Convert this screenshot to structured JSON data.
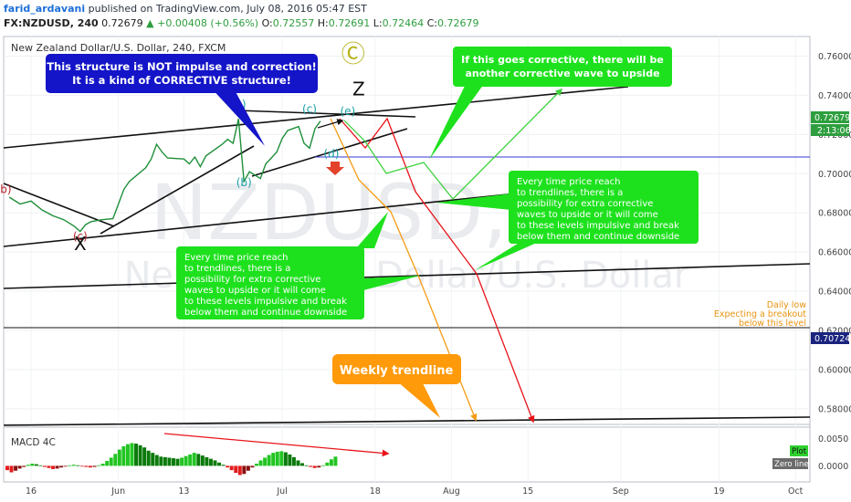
{
  "header": {
    "author": "farid_ardavani",
    "published": "published on TradingView.com, July 08, 2016 05:47 EST",
    "symbol": "FX:NZDUSD, 240",
    "last": "0.72679",
    "change": "▲ +0.00408 (+0.56%)",
    "open_label": "O:",
    "open": "0.72557",
    "high_label": "H:",
    "high": "0.72691",
    "low_label": "L:",
    "low": "0.72464",
    "close_label": "C:",
    "close": "0.72679"
  },
  "chart_data": {
    "type": "line",
    "title": "New Zealand Dollar/U.S. Dollar, 240, FXCM",
    "watermark_symbol": "NZDUSD,",
    "watermark_name": "New Zealand Dollar/U.S. Dollar",
    "y_ticks": [
      "0.76000",
      "0.74000",
      "0.72000",
      "0.70000",
      "0.68000",
      "0.66000",
      "0.64000",
      "0.62000",
      "0.60000",
      "0.58000"
    ],
    "ylim": [
      0.572,
      0.77
    ],
    "x_ticks": [
      "16",
      "Jun",
      "13",
      "Jul",
      "18",
      "Aug",
      "15",
      "Sep",
      "19",
      "Oct"
    ],
    "last_price_label": "0.72679",
    "countdown_label": "2:13:06",
    "level_label": "0.70724",
    "price_series": [
      {
        "date": "2016-05-12",
        "close": 0.688
      },
      {
        "date": "2016-05-14",
        "close": 0.6845
      },
      {
        "date": "2016-05-16",
        "close": 0.686
      },
      {
        "date": "2016-05-18",
        "close": 0.6815
      },
      {
        "date": "2016-05-20",
        "close": 0.6785
      },
      {
        "date": "2016-05-22",
        "close": 0.6765
      },
      {
        "date": "2016-05-24",
        "close": 0.673
      },
      {
        "date": "2016-05-25",
        "close": 0.6705
      },
      {
        "date": "2016-05-26",
        "close": 0.674
      },
      {
        "date": "2016-05-27",
        "close": 0.6755
      },
      {
        "date": "2016-05-29",
        "close": 0.6765
      },
      {
        "date": "2016-05-31",
        "close": 0.677
      },
      {
        "date": "2016-06-01",
        "close": 0.6845
      },
      {
        "date": "2016-06-02",
        "close": 0.692
      },
      {
        "date": "2016-06-03",
        "close": 0.696
      },
      {
        "date": "2016-06-06",
        "close": 0.703
      },
      {
        "date": "2016-06-07",
        "close": 0.7075
      },
      {
        "date": "2016-06-08",
        "close": 0.715
      },
      {
        "date": "2016-06-09",
        "close": 0.711
      },
      {
        "date": "2016-06-10",
        "close": 0.708
      },
      {
        "date": "2016-06-13",
        "close": 0.7075
      },
      {
        "date": "2016-06-14",
        "close": 0.705
      },
      {
        "date": "2016-06-15",
        "close": 0.7085
      },
      {
        "date": "2016-06-16",
        "close": 0.7035
      },
      {
        "date": "2016-06-17",
        "close": 0.709
      },
      {
        "date": "2016-06-20",
        "close": 0.715
      },
      {
        "date": "2016-06-21",
        "close": 0.7175
      },
      {
        "date": "2016-06-22",
        "close": 0.7155
      },
      {
        "date": "2016-06-23",
        "close": 0.728
      },
      {
        "date": "2016-06-24",
        "close": 0.696
      },
      {
        "date": "2016-06-25",
        "close": 0.701
      },
      {
        "date": "2016-06-27",
        "close": 0.6975
      },
      {
        "date": "2016-06-28",
        "close": 0.705
      },
      {
        "date": "2016-06-29",
        "close": 0.708
      },
      {
        "date": "2016-06-30",
        "close": 0.711
      },
      {
        "date": "2016-07-01",
        "close": 0.718
      },
      {
        "date": "2016-07-02",
        "close": 0.722
      },
      {
        "date": "2016-07-04",
        "close": 0.724
      },
      {
        "date": "2016-07-05",
        "close": 0.7155
      },
      {
        "date": "2016-07-06",
        "close": 0.713
      },
      {
        "date": "2016-07-07",
        "close": 0.723
      },
      {
        "date": "2016-07-08",
        "close": 0.7268
      }
    ],
    "wave_labels": [
      {
        "text": "(a)",
        "color": "#1aa1a8",
        "date": "2016-06-23",
        "y": 0.7335
      },
      {
        "text": "(b)",
        "color": "#1aa1a8",
        "date": "2016-06-24",
        "y": 0.6935
      },
      {
        "text": "(c)",
        "color": "#1aa1a8",
        "date": "2016-07-06",
        "y": 0.731
      },
      {
        "text": "(d)",
        "color": "#1aa1a8",
        "date": "2016-07-10",
        "y": 0.7083
      },
      {
        "text": "(e)",
        "color": "#1aa1a8",
        "date": "2016-07-13",
        "y": 0.73
      },
      {
        "text": "(b)",
        "color": "#b7232a",
        "date": "2016-05-11",
        "y": 0.69
      },
      {
        "text": "(c)",
        "color": "#b7232a",
        "date": "2016-05-25",
        "y": 0.666
      },
      {
        "text": "X",
        "color": "#111111",
        "date": "2016-05-25",
        "y": 0.661
      },
      {
        "text": "Z",
        "color": "#111111",
        "date": "2016-07-15",
        "y": 0.74
      },
      {
        "text": "Ⓒ",
        "color": "#b6b21a",
        "date": "2016-07-14",
        "y": 0.757
      }
    ],
    "annotations": [
      {
        "id": "structure",
        "text": [
          "This structure is NOT impulse and correction!",
          "It is a kind of CORRECTIVE structure!"
        ],
        "bg": "#1414c8",
        "fg": "#ffffff"
      },
      {
        "id": "corrective",
        "text": [
          "If this goes corrective, there will be",
          "another corrective wave to upside"
        ],
        "bg": "#1ee11e",
        "fg": "#ffffff"
      },
      {
        "id": "trend_right",
        "text": [
          "Every time price reach",
          "to trendlines, there is a",
          "possibility for extra corrective",
          "waves to upside or it will come",
          "to these levels impulsive and break",
          "below them and continue downside"
        ],
        "bg": "#1ee11e",
        "fg": "#ffffff"
      },
      {
        "id": "trend_left",
        "text": [
          "Every time price reach",
          "to trendlines, there is a",
          "possibility for extra corrective",
          "waves to upside or it will come",
          "to these levels impulsive and break",
          "below them and continue downside"
        ],
        "bg": "#1ee11e",
        "fg": "#ffffff"
      },
      {
        "id": "weekly",
        "text": [
          "Weekly trendline"
        ],
        "bg": "#ff9a0a",
        "fg": "#ffffff"
      },
      {
        "id": "daily",
        "text": [
          "Daily low",
          "Expecting a breakout",
          "below this level"
        ],
        "bg": "none",
        "fg": "#e89410"
      }
    ],
    "macd": {
      "title": "MACD 4C",
      "y_ticks": [
        "0.0050",
        "0.0000"
      ],
      "ylim": [
        -0.0028,
        0.0068
      ],
      "plot_label": "Plot",
      "zero_label": "Zero line",
      "histogram": [
        -0.0008,
        -0.0012,
        -0.0009,
        -0.0005,
        -0.0002,
        0.0002,
        0.0004,
        0.0003,
        0.0001,
        -0.0002,
        -0.0004,
        -0.0006,
        -0.0005,
        -0.0003,
        -0.0001,
        0.0001,
        0.0002,
        0.0001,
        -0.0001,
        -0.0002,
        -0.0003,
        -0.0002,
        0.0001,
        0.0004,
        0.0009,
        0.0015,
        0.0022,
        0.003,
        0.0036,
        0.004,
        0.0042,
        0.0041,
        0.0038,
        0.0034,
        0.0028,
        0.0024,
        0.002,
        0.0017,
        0.0016,
        0.0015,
        0.0014,
        0.0013,
        0.0015,
        0.0018,
        0.0021,
        0.0024,
        0.0022,
        0.0019,
        0.0016,
        0.0013,
        0.001,
        0.0006,
        0.0002,
        -0.0003,
        -0.0008,
        -0.0013,
        -0.0017,
        -0.0015,
        -0.0009,
        -0.0003,
        0.0004,
        0.001,
        0.0015,
        0.002,
        0.0024,
        0.0026,
        0.0027,
        0.0025,
        0.0021,
        0.0016,
        0.001,
        0.0005,
        0.0001,
        -0.0002,
        -0.0004,
        -0.0003,
        0.0001,
        0.0006,
        0.0012,
        0.0017
      ]
    }
  }
}
